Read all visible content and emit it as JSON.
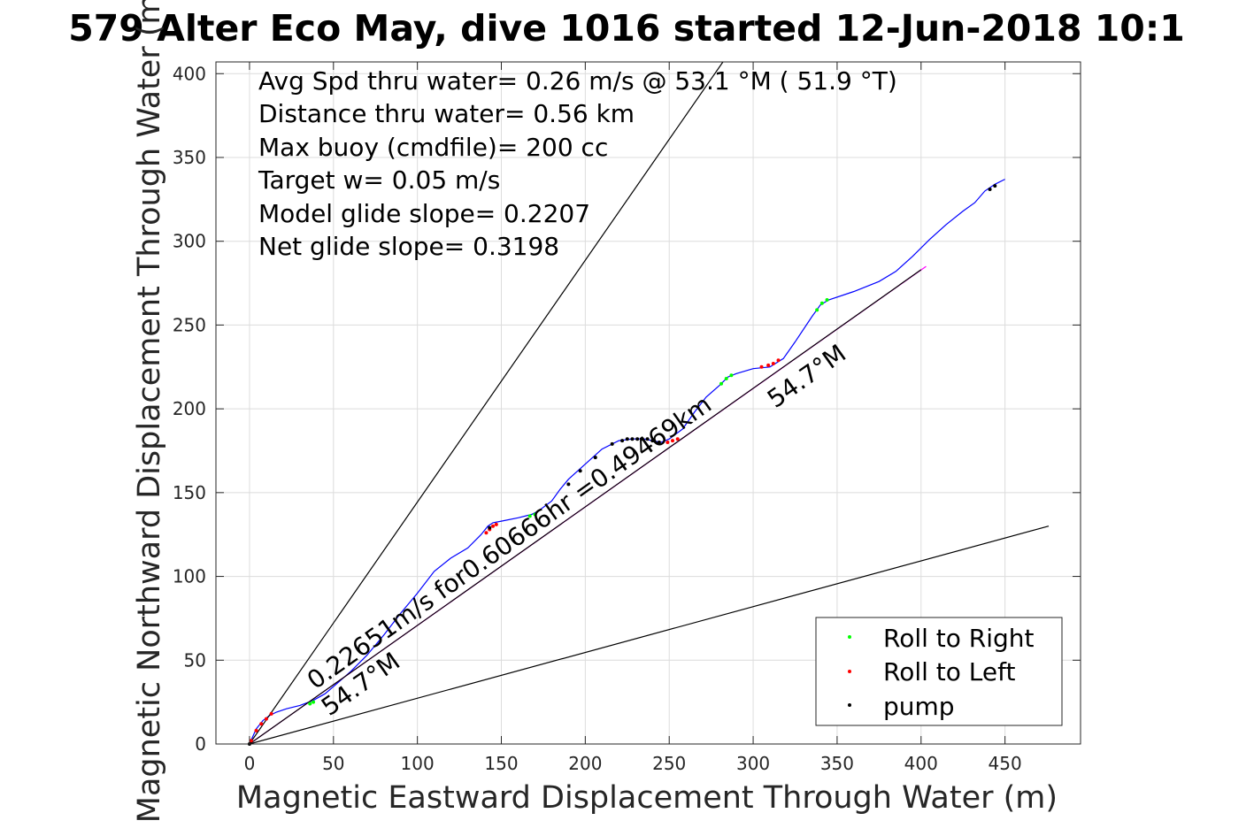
{
  "chart_data": {
    "type": "line",
    "title": "579 Alter Eco May, dive 1016 started 12-Jun-2018 10:1",
    "xlabel": "Magnetic Eastward Displacement Through Water (m)",
    "ylabel": "Magnetic Northward Displacement Through Water (m)",
    "xlim": [
      -20,
      495
    ],
    "ylim": [
      0,
      407
    ],
    "xticks": [
      0,
      50,
      100,
      150,
      200,
      250,
      300,
      350,
      400,
      450
    ],
    "yticks": [
      0,
      50,
      100,
      150,
      200,
      250,
      300,
      350,
      400
    ],
    "grid": true,
    "legend_position": "bottom-right",
    "info_lines": [
      "Avg Spd thru water=  0.26 m/s @  53.1 °M ( 51.9 °T)",
      "Distance thru water=  0.56 km",
      "Max buoy (cmdfile)= 200 cc",
      "Target w= 0.05 m/s",
      "Model glide slope= 0.2207",
      "Net glide slope= 0.3198"
    ],
    "annotations": {
      "speed": "0.22651m/s for0.60666hr =0.49469km",
      "heading_start": "54.7°M",
      "heading_end": "54.7°M"
    },
    "legend": [
      {
        "label": "Roll to Right",
        "color": "#00ff00"
      },
      {
        "label": "Roll to Left",
        "color": "#ff0000"
      },
      {
        "label": "pump",
        "color": "#000000"
      }
    ],
    "series": [
      {
        "color": "#0000ff",
        "x": [
          0,
          4,
          8,
          12,
          16,
          22,
          30,
          38,
          45,
          52,
          60,
          70,
          80,
          90,
          100,
          110,
          120,
          130,
          138,
          142,
          145,
          150,
          160,
          168,
          172,
          180,
          185,
          190,
          200,
          210,
          220,
          228,
          235,
          240,
          245,
          250,
          258,
          265,
          272,
          280,
          285,
          290,
          300,
          310,
          318,
          325,
          335,
          340,
          345,
          360,
          375,
          385,
          395,
          405,
          415,
          425,
          432,
          438,
          444,
          450
        ],
        "y": [
          0,
          9,
          14,
          17,
          19,
          21,
          23,
          26,
          30,
          36,
          43,
          53,
          65,
          78,
          90,
          103,
          111,
          117,
          125,
          130,
          132,
          133,
          135,
          137,
          139,
          145,
          152,
          158,
          167,
          176,
          181,
          182,
          182,
          181,
          180,
          182,
          188,
          198,
          207,
          214,
          219,
          221,
          224,
          225,
          230,
          240,
          255,
          262,
          265,
          270,
          276,
          282,
          291,
          301,
          310,
          318,
          323,
          330,
          334,
          337
        ]
      },
      {
        "color": "#ff00ff",
        "x": [
          0,
          403
        ],
        "y": [
          0,
          285
        ]
      },
      {
        "color": "#000000",
        "x": [
          0,
          400
        ],
        "y": [
          0,
          283
        ]
      },
      {
        "color": "#000000",
        "x": [
          0,
          282
        ],
        "y": [
          0,
          407
        ]
      },
      {
        "color": "#000000",
        "x": [
          0,
          476
        ],
        "y": [
          0,
          130
        ]
      }
    ],
    "markers": {
      "right": {
        "color": "#00ff00",
        "x": [
          36,
          38,
          167,
          170,
          281,
          284,
          287,
          338,
          341,
          344
        ],
        "y": [
          24,
          25,
          136,
          137,
          215,
          218,
          220,
          259,
          263,
          265
        ]
      },
      "left": {
        "color": "#ff0000",
        "x": [
          1,
          4,
          7,
          10,
          13,
          141,
          143,
          145,
          147,
          305,
          309,
          312,
          315,
          249,
          252,
          255
        ],
        "y": [
          2,
          8,
          12,
          15,
          18,
          126,
          128,
          130,
          131,
          225,
          226,
          227,
          229,
          180,
          181,
          182
        ]
      },
      "pump": {
        "color": "#000000",
        "x": [
          0,
          143,
          190,
          197,
          206,
          216,
          222,
          225,
          228,
          231,
          234,
          237,
          240,
          244,
          441,
          444
        ],
        "y": [
          0,
          129,
          155,
          163,
          171,
          179,
          181,
          182,
          182,
          182,
          182,
          182,
          181,
          180,
          331,
          333
        ]
      }
    }
  }
}
